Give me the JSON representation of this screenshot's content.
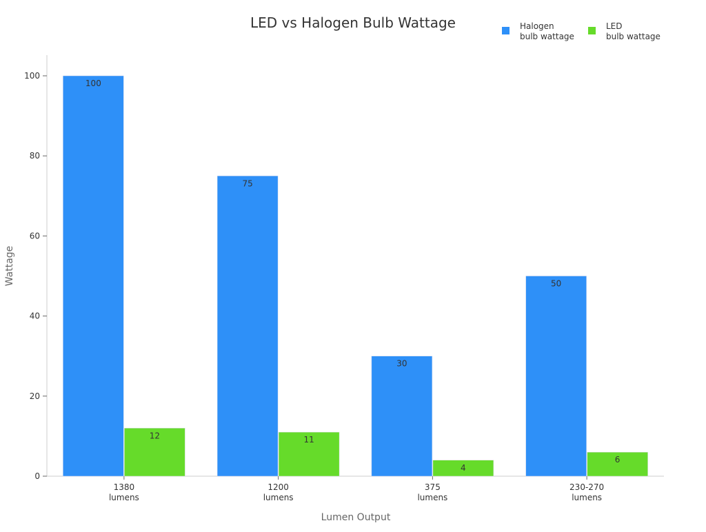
{
  "chart_data": {
    "type": "bar",
    "title": "LED vs Halogen Bulb Wattage",
    "xlabel": "Lumen Output",
    "ylabel": "Wattage",
    "categories": [
      [
        "1380",
        "lumens"
      ],
      [
        "1200",
        "lumens"
      ],
      [
        "375",
        "lumens"
      ],
      [
        "230-270",
        "lumens"
      ]
    ],
    "series": [
      {
        "name": [
          "Halogen",
          "bulb wattage"
        ],
        "values": [
          100,
          75,
          30,
          50
        ],
        "color": "#2E90F8"
      },
      {
        "name": [
          "LED",
          "bulb wattage"
        ],
        "values": [
          12,
          11,
          4,
          6
        ],
        "color": "#66DB2A"
      }
    ],
    "ylim": [
      0,
      105
    ],
    "yticks": [
      0,
      20,
      40,
      60,
      80,
      100
    ],
    "grid": false,
    "legend": "top-right",
    "data_labels": true
  }
}
